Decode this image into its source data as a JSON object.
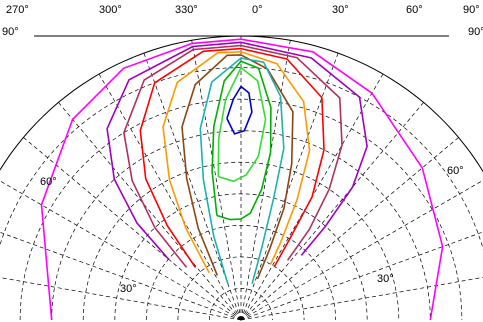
{
  "chart_data": {
    "type": "polar-contour",
    "title": "",
    "top_axis": {
      "labels": [
        "270°",
        "300°",
        "330°",
        "0°",
        "30°",
        "60°",
        "90°"
      ],
      "values": [
        270,
        300,
        330,
        0,
        30,
        60,
        90
      ]
    },
    "elevation_labels": {
      "left": [
        "90°",
        "60°",
        "30°"
      ],
      "right": [
        "90°",
        "60°",
        "30°"
      ],
      "values": [
        90,
        60,
        30
      ]
    },
    "grid": true,
    "grid_style": "dashed",
    "series": [
      {
        "color": "#ff00ff",
        "points": [
          [
            -90,
            60
          ],
          [
            -60,
            73
          ],
          [
            -40,
            83
          ],
          [
            -25,
            88
          ],
          [
            -10,
            89
          ],
          [
            0,
            89
          ],
          [
            15,
            88
          ],
          [
            30,
            83
          ],
          [
            50,
            75
          ],
          [
            70,
            68
          ],
          [
            90,
            60
          ]
        ]
      },
      {
        "color": "#a000c0",
        "points": [
          [
            -50,
            30
          ],
          [
            -47,
            45
          ],
          [
            -42,
            60
          ],
          [
            -35,
            74
          ],
          [
            -25,
            84
          ],
          [
            -10,
            88
          ],
          [
            0,
            88
          ],
          [
            15,
            86
          ],
          [
            28,
            80
          ],
          [
            36,
            68
          ],
          [
            40,
            55
          ],
          [
            42,
            40
          ],
          [
            43,
            28
          ]
        ]
      },
      {
        "color": "#b03060",
        "points": [
          [
            -46,
            24
          ],
          [
            -43,
            40
          ],
          [
            -38,
            56
          ],
          [
            -32,
            70
          ],
          [
            -22,
            82
          ],
          [
            -10,
            87
          ],
          [
            0,
            87
          ],
          [
            12,
            85
          ],
          [
            24,
            77
          ],
          [
            30,
            64
          ],
          [
            34,
            50
          ],
          [
            37,
            36
          ],
          [
            38,
            24
          ]
        ]
      },
      {
        "color": "#ff0000",
        "points": [
          [
            -41,
            22
          ],
          [
            -38,
            38
          ],
          [
            -34,
            54
          ],
          [
            -28,
            68
          ],
          [
            -20,
            80
          ],
          [
            -8,
            86
          ],
          [
            0,
            86
          ],
          [
            10,
            84
          ],
          [
            20,
            75
          ],
          [
            26,
            60
          ],
          [
            30,
            45
          ],
          [
            31,
            30
          ],
          [
            32,
            20
          ]
        ]
      },
      {
        "color": "#ff9900",
        "points": [
          [
            -34,
            18
          ],
          [
            -31,
            34
          ],
          [
            -27,
            50
          ],
          [
            -22,
            66
          ],
          [
            -15,
            78
          ],
          [
            -5,
            85
          ],
          [
            0,
            85
          ],
          [
            8,
            82
          ],
          [
            16,
            72
          ],
          [
            22,
            58
          ],
          [
            25,
            42
          ],
          [
            27,
            28
          ],
          [
            28,
            20
          ]
        ]
      },
      {
        "color": "#8b4513",
        "points": [
          [
            -28,
            16
          ],
          [
            -25,
            32
          ],
          [
            -21,
            48
          ],
          [
            -17,
            64
          ],
          [
            -11,
            76
          ],
          [
            -3,
            84
          ],
          [
            0,
            84
          ],
          [
            6,
            80
          ],
          [
            14,
            68
          ],
          [
            18,
            52
          ],
          [
            21,
            38
          ],
          [
            22,
            24
          ],
          [
            22,
            14
          ]
        ]
      },
      {
        "color": "#20b0b0",
        "points": [
          [
            -20,
            12
          ],
          [
            -18,
            28
          ],
          [
            -15,
            46
          ],
          [
            -12,
            62
          ],
          [
            -7,
            76
          ],
          [
            0,
            83
          ],
          [
            5,
            82
          ],
          [
            10,
            72
          ],
          [
            14,
            56
          ],
          [
            15,
            40
          ],
          [
            16,
            24
          ],
          [
            17,
            12
          ]
        ]
      },
      {
        "color": "#00b000",
        "points": [
          [
            -13,
            34
          ],
          [
            -11,
            48
          ],
          [
            -8,
            62
          ],
          [
            -4,
            76
          ],
          [
            0,
            82
          ],
          [
            4,
            80
          ],
          [
            8,
            68
          ],
          [
            10,
            54
          ],
          [
            9,
            42
          ],
          [
            5,
            34
          ],
          [
            0,
            32
          ],
          [
            -6,
            32
          ],
          [
            -13,
            34
          ]
        ]
      },
      {
        "color": "#33dd33",
        "points": [
          [
            -9,
            46
          ],
          [
            -7,
            58
          ],
          [
            -4,
            70
          ],
          [
            0,
            80
          ],
          [
            4,
            76
          ],
          [
            7,
            64
          ],
          [
            6,
            52
          ],
          [
            2,
            46
          ],
          [
            -3,
            44
          ],
          [
            -9,
            46
          ]
        ]
      },
      {
        "color": "#0000cc",
        "points": [
          [
            -4,
            64
          ],
          [
            -2,
            70
          ],
          [
            0,
            74
          ],
          [
            2,
            72
          ],
          [
            3,
            66
          ],
          [
            1,
            60
          ],
          [
            -2,
            59
          ],
          [
            -4,
            64
          ]
        ]
      }
    ]
  }
}
